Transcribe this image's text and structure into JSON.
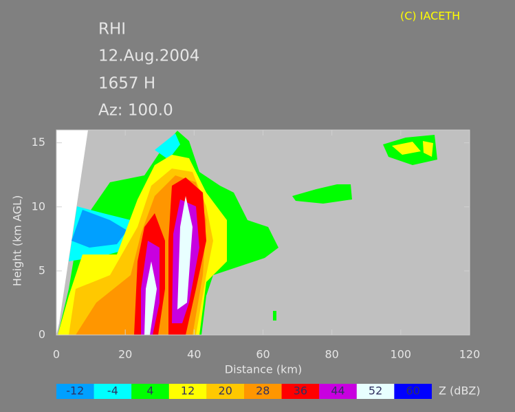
{
  "chart_data": {
    "type": "rhi",
    "title": "RHI",
    "date": "12.Aug.2004",
    "time": "1657 H",
    "azimuth": "Az: 100.0",
    "copyright": "(C) IACETH",
    "xlabel": "Distance      (km)",
    "ylabel": "Height  (km AGL)",
    "xlim": [
      0,
      120
    ],
    "xticks": [
      0,
      20,
      40,
      60,
      80,
      100,
      120
    ],
    "ylim": [
      0,
      16
    ],
    "yticks": [
      0,
      5,
      10,
      15
    ],
    "colorbar": {
      "label": "Z (dBZ)",
      "levels": [
        -12,
        -4,
        4,
        12,
        20,
        28,
        36,
        44,
        52,
        60
      ],
      "colors": [
        "#00a0ff",
        "#00ffff",
        "#00ff00",
        "#ffff00",
        "#ffc800",
        "#ff9600",
        "#ff0000",
        "#c800e0",
        "#e8ffff",
        "#0000ff"
      ]
    }
  }
}
